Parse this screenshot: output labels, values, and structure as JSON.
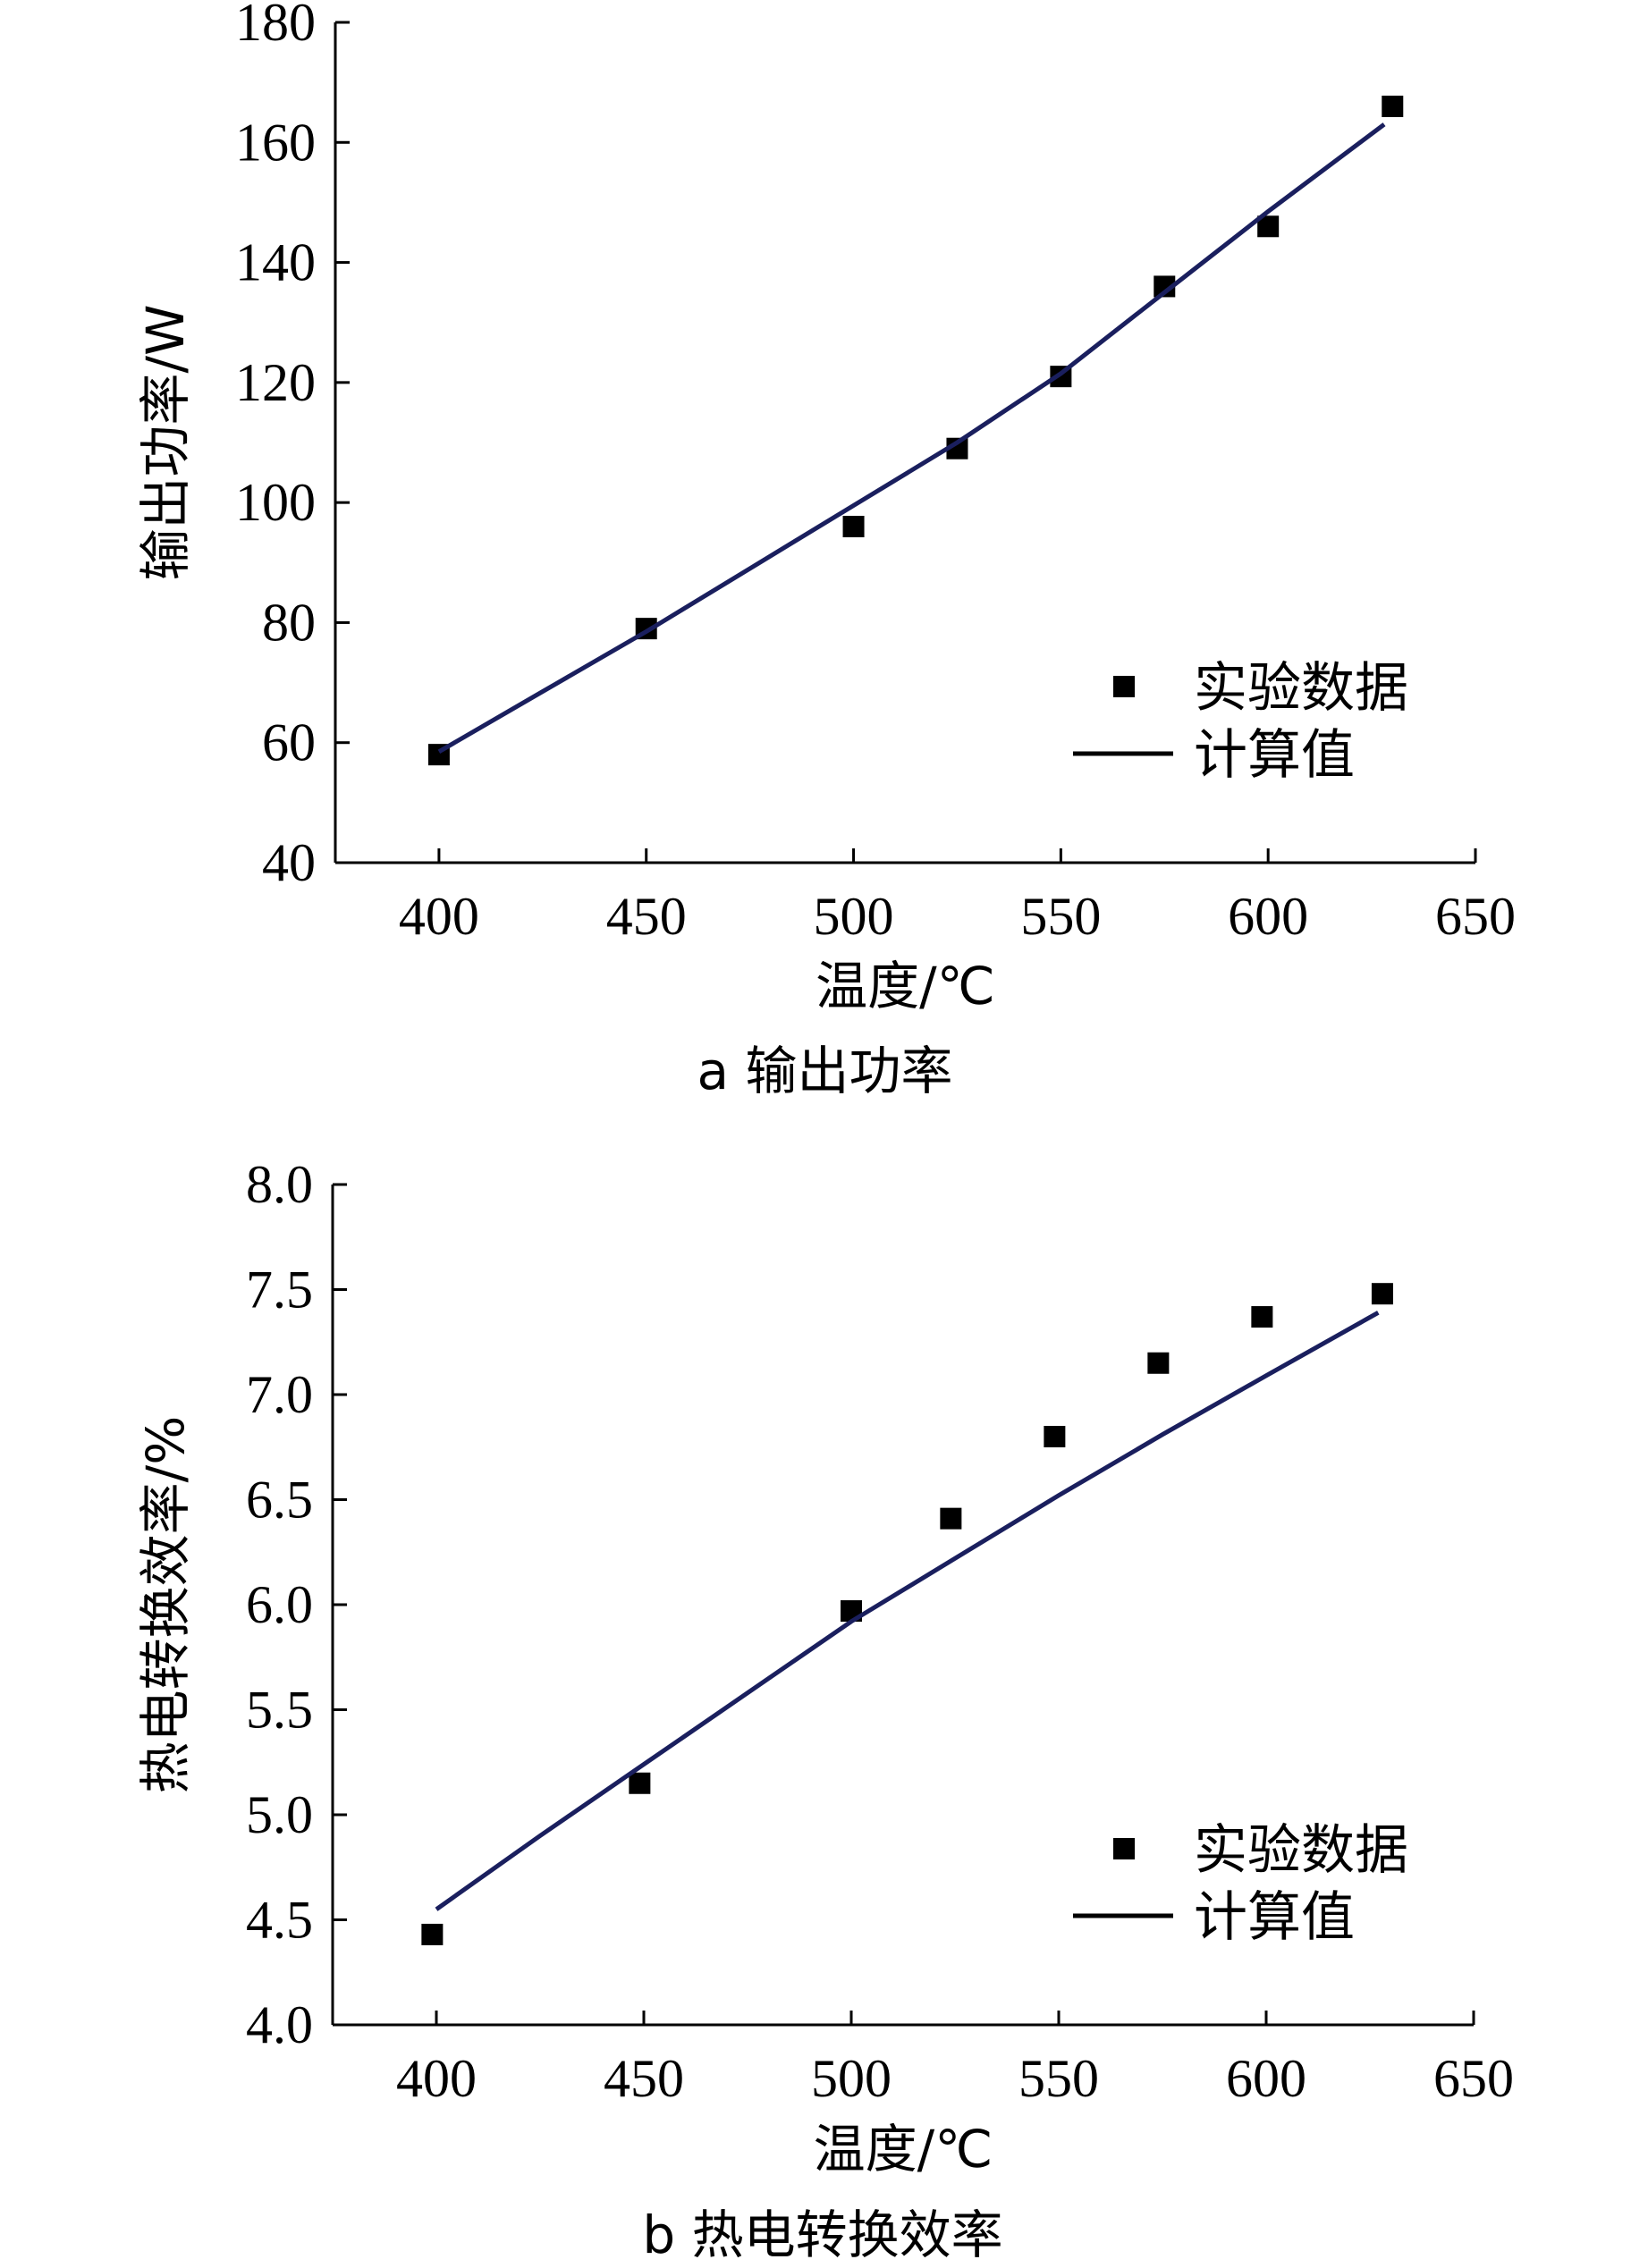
{
  "chart_data": [
    {
      "type": "scatter",
      "caption": "a 输出功率",
      "xlabel": "温度/℃",
      "ylabel": "输出功率/W",
      "xlim": [
        375,
        650
      ],
      "ylim": [
        40,
        180
      ],
      "xticks": [
        400,
        450,
        500,
        550,
        600,
        650
      ],
      "yticks": [
        40,
        60,
        80,
        100,
        120,
        140,
        160,
        180
      ],
      "grid": false,
      "legend_position": "bottom-right",
      "series": [
        {
          "name": "实验数据",
          "kind": "scatter",
          "x": [
            400,
            450,
            500,
            525,
            550,
            575,
            600,
            630
          ],
          "y": [
            58,
            79,
            96,
            109,
            121,
            136,
            146,
            166
          ]
        },
        {
          "name": "计算值",
          "kind": "line",
          "color": "#1a1f5e",
          "x": [
            400,
            425,
            450,
            475,
            500,
            525,
            550,
            575,
            600,
            628
          ],
          "y": [
            58.5,
            68.5,
            78.5,
            89,
            99.5,
            110,
            121.5,
            135,
            148.5,
            163
          ]
        }
      ]
    },
    {
      "type": "scatter",
      "caption": "b 热电转换效率",
      "xlabel": "温度/℃",
      "ylabel": "热电转换效率/%",
      "xlim": [
        375,
        650
      ],
      "ylim": [
        4.0,
        8.0
      ],
      "xticks": [
        400,
        450,
        500,
        550,
        600,
        650
      ],
      "yticks": [
        "4.0",
        "4.5",
        "5.0",
        "5.5",
        "6.0",
        "6.5",
        "7.0",
        "7.5",
        "8.0"
      ],
      "grid": false,
      "legend_position": "bottom-right",
      "series": [
        {
          "name": "实验数据",
          "kind": "scatter",
          "x": [
            399,
            449,
            500,
            524,
            549,
            574,
            599,
            628
          ],
          "y": [
            4.43,
            5.15,
            5.97,
            6.41,
            6.8,
            7.15,
            7.37,
            7.48
          ]
        },
        {
          "name": "计算值",
          "kind": "line",
          "color": "#1a1f5e",
          "x": [
            400,
            425,
            450,
            475,
            500,
            525,
            550,
            575,
            600,
            627
          ],
          "y": [
            4.55,
            4.9,
            5.24,
            5.58,
            5.92,
            6.22,
            6.52,
            6.81,
            7.09,
            7.39
          ]
        }
      ]
    }
  ]
}
